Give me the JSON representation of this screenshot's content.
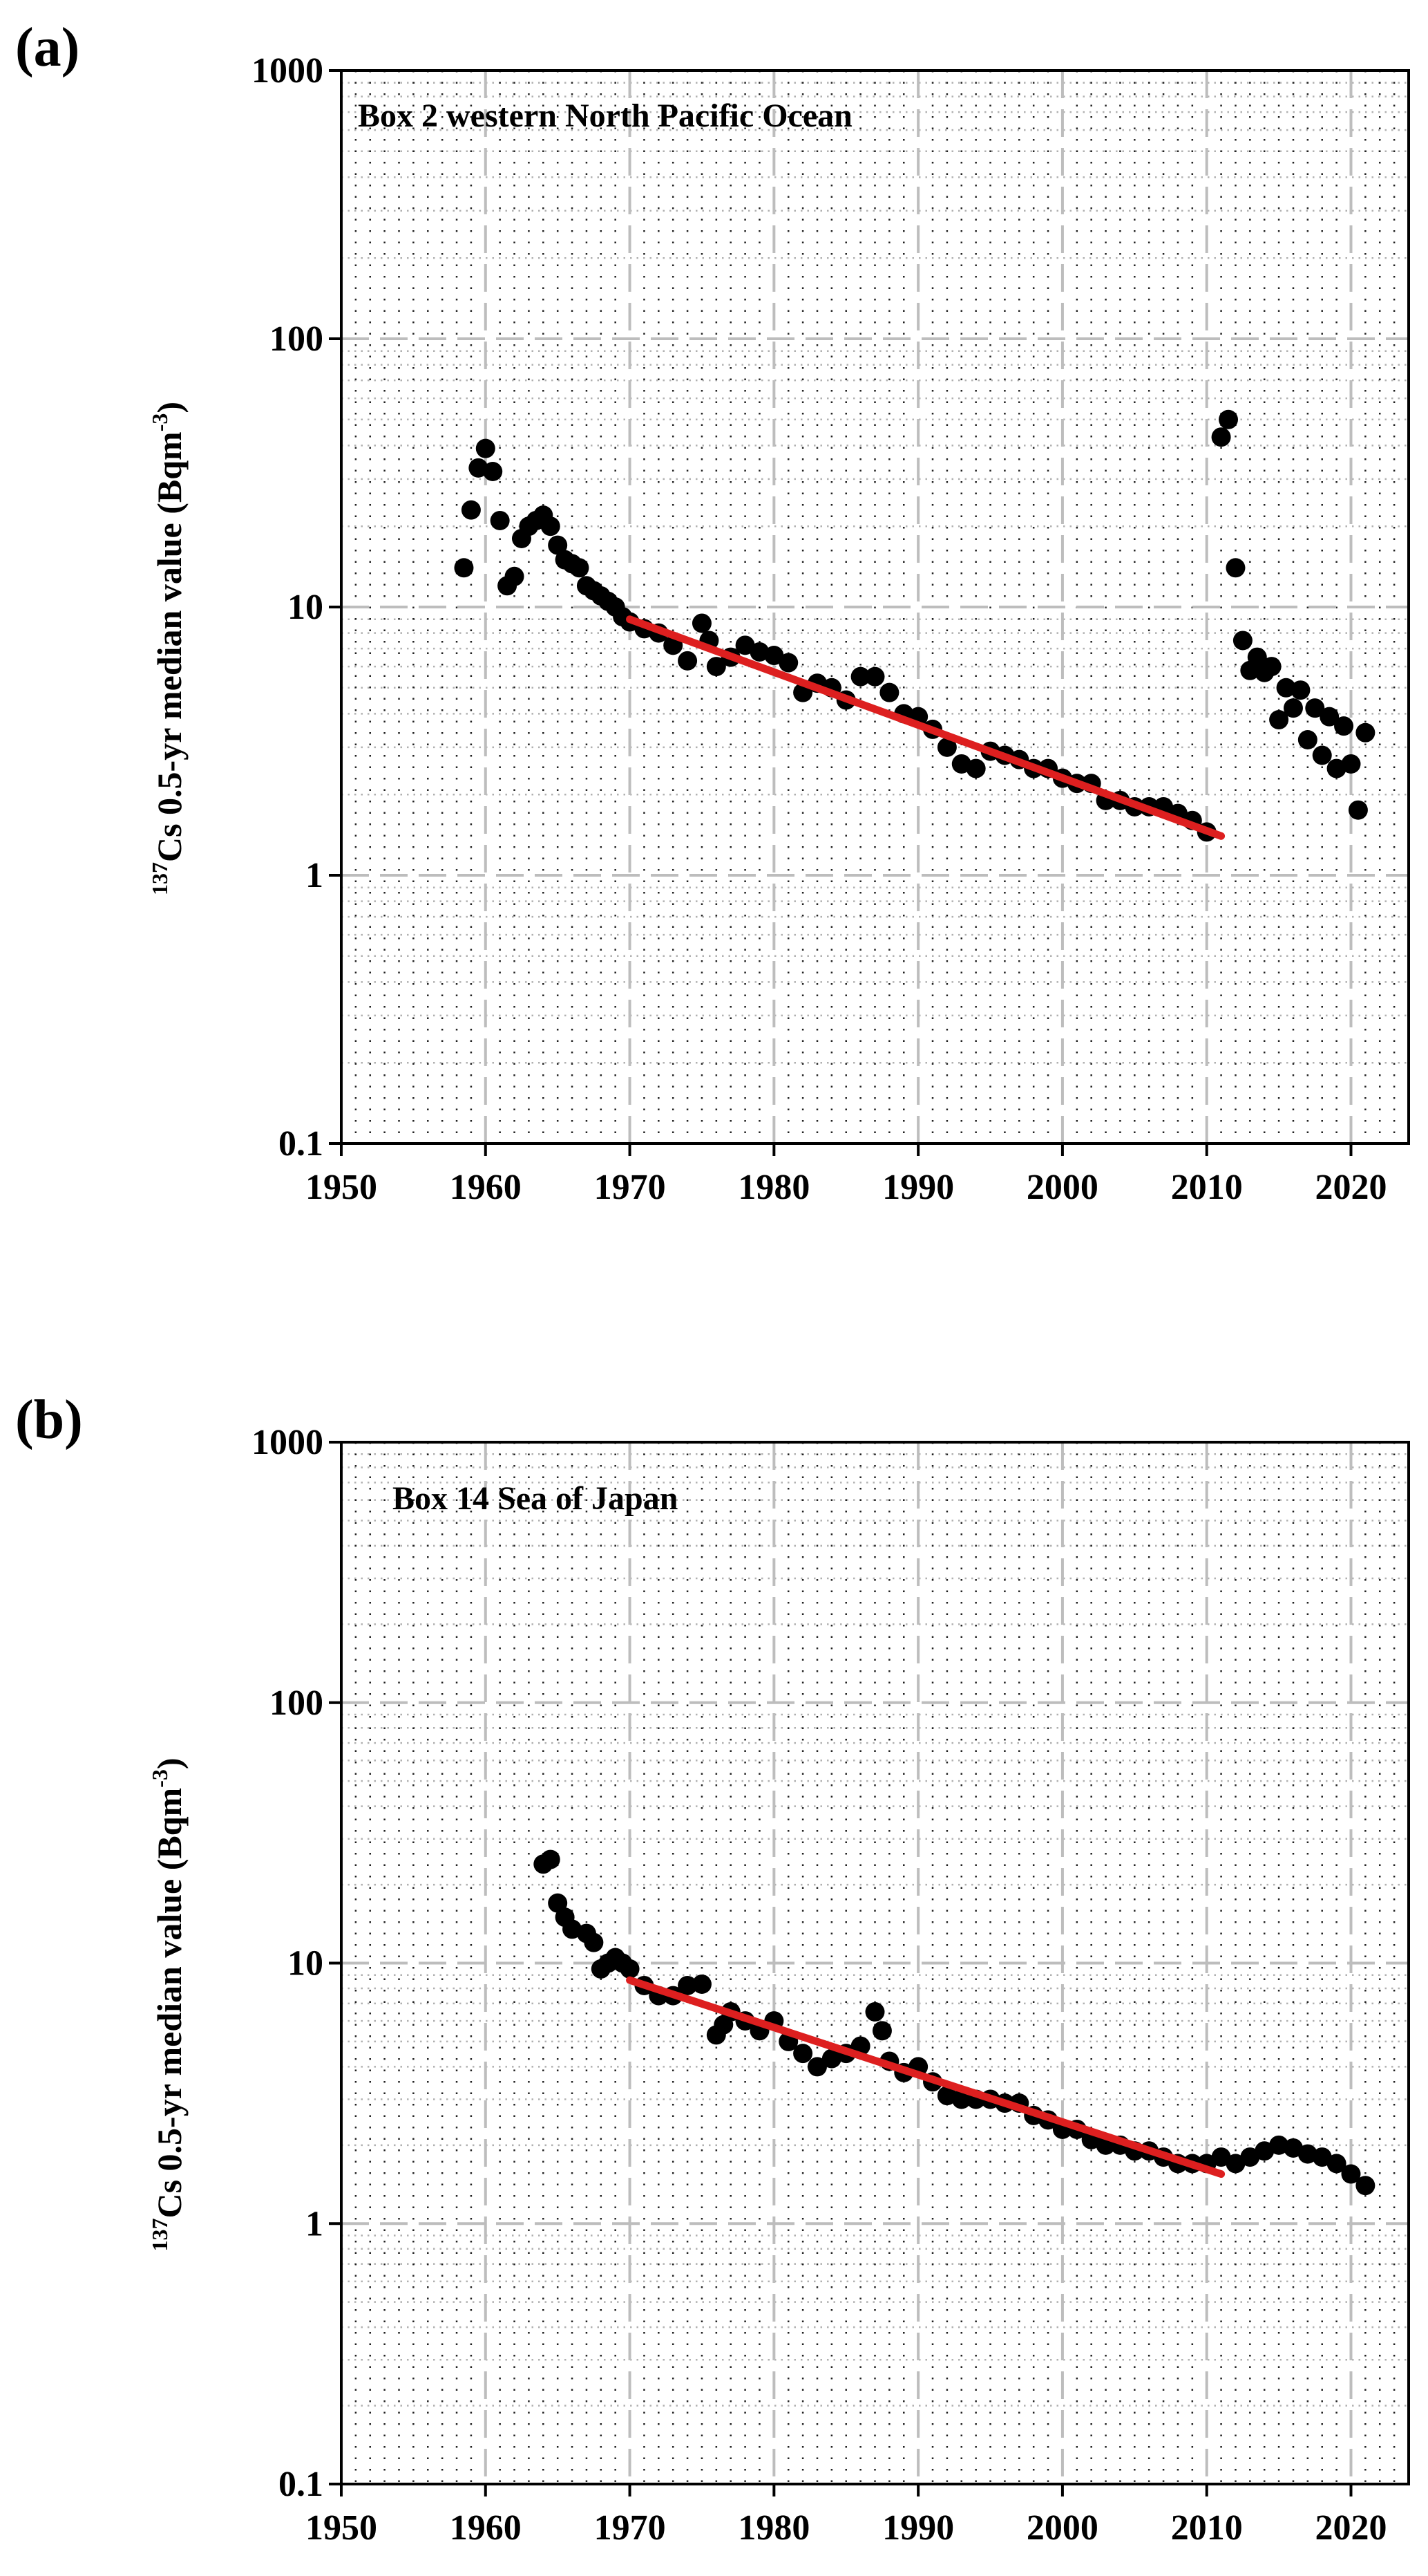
{
  "chart_data": [
    {
      "panel_label": "(a)",
      "type": "scatter",
      "title": "Box 2 western North Pacific Ocean",
      "ylabel_sup": "137",
      "ylabel": "Cs 0.5-yr median value (Bqm",
      "ylabel_unit_sup": "-3",
      "ylabel_close": ")",
      "xlim": [
        1950,
        2024
      ],
      "ylim": [
        0.1,
        1000
      ],
      "yscale": "log",
      "xticks": [
        "1950",
        "1960",
        "1970",
        "1980",
        "1990",
        "2000",
        "2010",
        "2020"
      ],
      "yticks": [
        "0.1",
        "1",
        "10",
        "100",
        "1000"
      ],
      "grid": true,
      "marker_color": "#000000",
      "fit_color": "#dd1f1f",
      "points": [
        [
          1958.5,
          14
        ],
        [
          1959,
          23
        ],
        [
          1959.5,
          33
        ],
        [
          1960,
          39
        ],
        [
          1960.5,
          32
        ],
        [
          1961,
          21
        ],
        [
          1961.5,
          12
        ],
        [
          1962,
          13
        ],
        [
          1962.5,
          18
        ],
        [
          1963,
          20
        ],
        [
          1963.5,
          21
        ],
        [
          1964,
          22
        ],
        [
          1964.5,
          20
        ],
        [
          1965,
          17
        ],
        [
          1965.5,
          15
        ],
        [
          1966,
          14.5
        ],
        [
          1966.5,
          14
        ],
        [
          1967,
          12
        ],
        [
          1967.5,
          11.5
        ],
        [
          1968,
          11
        ],
        [
          1968.5,
          10.5
        ],
        [
          1969,
          10
        ],
        [
          1969.5,
          9.2
        ],
        [
          1970,
          8.8
        ],
        [
          1971,
          8.3
        ],
        [
          1972,
          8.0
        ],
        [
          1973,
          7.2
        ],
        [
          1974,
          6.3
        ],
        [
          1975,
          8.7
        ],
        [
          1975.5,
          7.5
        ],
        [
          1976,
          6.0
        ],
        [
          1977,
          6.5
        ],
        [
          1978,
          7.2
        ],
        [
          1979,
          6.8
        ],
        [
          1980,
          6.6
        ],
        [
          1981,
          6.2
        ],
        [
          1982,
          4.8
        ],
        [
          1983,
          5.2
        ],
        [
          1984,
          5.0
        ],
        [
          1985,
          4.5
        ],
        [
          1986,
          5.5
        ],
        [
          1987,
          5.5
        ],
        [
          1988,
          4.8
        ],
        [
          1989,
          4.0
        ],
        [
          1990,
          3.9
        ],
        [
          1991,
          3.5
        ],
        [
          1992,
          3.0
        ],
        [
          1993,
          2.6
        ],
        [
          1994,
          2.5
        ],
        [
          1995,
          2.9
        ],
        [
          1996,
          2.8
        ],
        [
          1997,
          2.7
        ],
        [
          1998,
          2.5
        ],
        [
          1999,
          2.5
        ],
        [
          2000,
          2.3
        ],
        [
          2001,
          2.2
        ],
        [
          2002,
          2.2
        ],
        [
          2003,
          1.9
        ],
        [
          2004,
          1.9
        ],
        [
          2005,
          1.8
        ],
        [
          2006,
          1.8
        ],
        [
          2007,
          1.8
        ],
        [
          2008,
          1.7
        ],
        [
          2009,
          1.6
        ],
        [
          2010,
          1.45
        ],
        [
          2011,
          43
        ],
        [
          2011.5,
          50
        ],
        [
          2012,
          14
        ],
        [
          2012.5,
          7.5
        ],
        [
          2013,
          5.8
        ],
        [
          2013.5,
          6.5
        ],
        [
          2014,
          5.7
        ],
        [
          2014.5,
          6.0
        ],
        [
          2015,
          3.8
        ],
        [
          2015.5,
          5.0
        ],
        [
          2016,
          4.2
        ],
        [
          2016.5,
          4.9
        ],
        [
          2017,
          3.2
        ],
        [
          2017.5,
          4.2
        ],
        [
          2018,
          2.8
        ],
        [
          2018.5,
          3.9
        ],
        [
          2019,
          2.5
        ],
        [
          2019.5,
          3.6
        ],
        [
          2020,
          2.6
        ],
        [
          2020.5,
          1.75
        ],
        [
          2021,
          3.4
        ]
      ],
      "fit": [
        [
          1970,
          9.0
        ],
        [
          2011,
          1.4
        ]
      ]
    },
    {
      "panel_label": "(b)",
      "type": "scatter",
      "title": "Box 14 Sea of Japan",
      "ylabel_sup": "137",
      "ylabel": "Cs 0.5-yr median value (Bqm",
      "ylabel_unit_sup": "-3",
      "ylabel_close": ")",
      "xlim": [
        1950,
        2024
      ],
      "ylim": [
        0.1,
        1000
      ],
      "yscale": "log",
      "xticks": [
        "1950",
        "1960",
        "1970",
        "1980",
        "1990",
        "2000",
        "2010",
        "2020"
      ],
      "yticks": [
        "0.1",
        "1",
        "10",
        "100",
        "1000"
      ],
      "grid": true,
      "marker_color": "#000000",
      "fit_color": "#dd1f1f",
      "points": [
        [
          1964,
          24
        ],
        [
          1964.5,
          25
        ],
        [
          1965,
          17
        ],
        [
          1965.5,
          15
        ],
        [
          1966,
          13.5
        ],
        [
          1967,
          13
        ],
        [
          1967.5,
          12
        ],
        [
          1968,
          9.5
        ],
        [
          1968.5,
          10
        ],
        [
          1969,
          10.5
        ],
        [
          1969.5,
          10
        ],
        [
          1970,
          9.5
        ],
        [
          1971,
          8.2
        ],
        [
          1972,
          7.5
        ],
        [
          1973,
          7.5
        ],
        [
          1974,
          8.2
        ],
        [
          1975,
          8.3
        ],
        [
          1976,
          5.3
        ],
        [
          1976.5,
          5.8
        ],
        [
          1977,
          6.5
        ],
        [
          1978,
          6.0
        ],
        [
          1979,
          5.5
        ],
        [
          1980,
          6.0
        ],
        [
          1981,
          5.0
        ],
        [
          1982,
          4.5
        ],
        [
          1983,
          4.0
        ],
        [
          1984,
          4.3
        ],
        [
          1985,
          4.5
        ],
        [
          1986,
          4.8
        ],
        [
          1987,
          6.5
        ],
        [
          1987.5,
          5.5
        ],
        [
          1988,
          4.2
        ],
        [
          1989,
          3.8
        ],
        [
          1990,
          4.0
        ],
        [
          1991,
          3.5
        ],
        [
          1992,
          3.1
        ],
        [
          1993,
          3.0
        ],
        [
          1994,
          3.0
        ],
        [
          1995,
          3.0
        ],
        [
          1996,
          2.9
        ],
        [
          1997,
          2.9
        ],
        [
          1998,
          2.6
        ],
        [
          1999,
          2.5
        ],
        [
          2000,
          2.3
        ],
        [
          2001,
          2.3
        ],
        [
          2002,
          2.1
        ],
        [
          2003,
          2.0
        ],
        [
          2004,
          2.0
        ],
        [
          2005,
          1.9
        ],
        [
          2006,
          1.9
        ],
        [
          2007,
          1.8
        ],
        [
          2008,
          1.7
        ],
        [
          2009,
          1.7
        ],
        [
          2010,
          1.7
        ],
        [
          2011,
          1.8
        ],
        [
          2012,
          1.7
        ],
        [
          2013,
          1.8
        ],
        [
          2014,
          1.9
        ],
        [
          2015,
          2.0
        ],
        [
          2016,
          1.95
        ],
        [
          2017,
          1.85
        ],
        [
          2018,
          1.8
        ],
        [
          2019,
          1.7
        ],
        [
          2020,
          1.55
        ],
        [
          2021,
          1.4
        ]
      ],
      "fit": [
        [
          1970,
          8.6
        ],
        [
          2011,
          1.55
        ]
      ]
    }
  ]
}
